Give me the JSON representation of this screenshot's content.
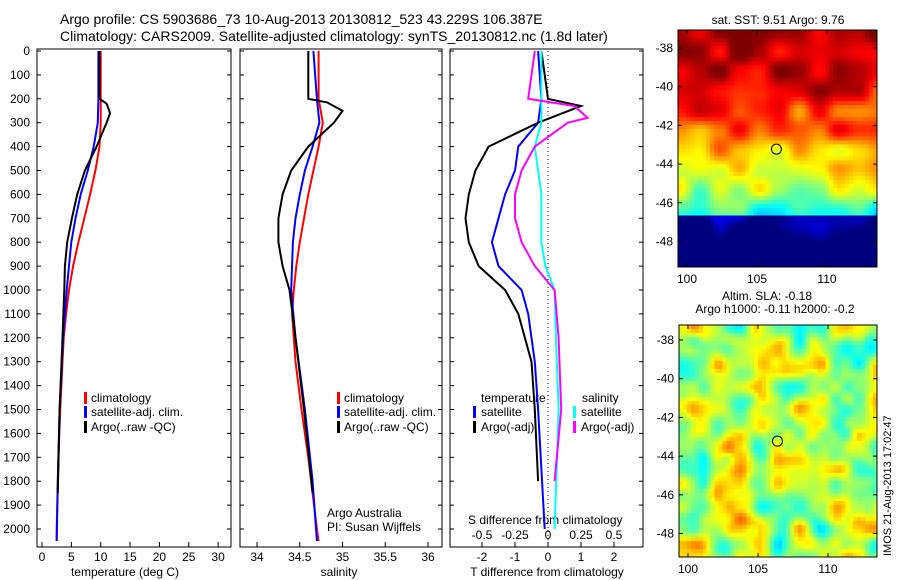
{
  "title": {
    "line1": "Argo profile: CS 5903686_73 10-Aug-2013 20130812_523 43.229S 106.387E",
    "line2": "Climatology: CARS2009. Satellite-adjusted climatology: synTS_20130812.nc (1.8d later)"
  },
  "colors": {
    "clim": "#ff0000",
    "sat": "#0000ff",
    "argo": "#000000",
    "sal_sat": "#00ffff",
    "sal_argo": "#ff00ff"
  },
  "chart_data": [
    {
      "type": "line",
      "xlabel": "temperature (deg C)",
      "xlim": [
        -1,
        31
      ],
      "ylim": [
        0,
        2050
      ],
      "xticks": [
        "0",
        "5",
        "10",
        "15",
        "20",
        "25",
        "30"
      ],
      "yticks": [
        "0",
        "100",
        "200",
        "300",
        "400",
        "500",
        "600",
        "700",
        "800",
        "900",
        "1000",
        "1100",
        "1200",
        "1300",
        "1400",
        "1500",
        "1600",
        "1700",
        "1800",
        "1900",
        "2000"
      ],
      "legend": [
        "climatology",
        "satellite-adj. clim.",
        "Argo(..raw -QC)"
      ],
      "series": [
        {
          "name": "climatology",
          "color": "#ff0000",
          "depth": [
            0,
            100,
            200,
            300,
            400,
            500,
            600,
            700,
            800,
            900,
            1000,
            1100,
            1200,
            1300,
            1500,
            1700,
            2000,
            2050
          ],
          "values": [
            10,
            10,
            10,
            10,
            9.8,
            9.1,
            8.2,
            7.2,
            6.2,
            5.3,
            4.6,
            4.1,
            3.7,
            3.5,
            3.1,
            2.8,
            2.5,
            2.5
          ]
        },
        {
          "name": "satellite-adj. clim.",
          "color": "#0000ff",
          "depth": [
            0,
            200,
            300,
            400,
            500,
            600,
            700,
            800,
            900,
            1000,
            1200,
            1500,
            1800,
            2050
          ],
          "values": [
            9.6,
            9.6,
            9.5,
            8.8,
            7.8,
            6.6,
            5.7,
            5.0,
            4.6,
            4.2,
            3.6,
            3.0,
            2.7,
            2.5
          ]
        },
        {
          "name": "Argo(..raw -QC)",
          "color": "#000000",
          "depth": [
            0,
            200,
            220,
            260,
            300,
            400,
            500,
            600,
            700,
            800,
            900,
            1000,
            1200,
            1500,
            1850
          ],
          "values": [
            9.8,
            9.8,
            11,
            11.6,
            11,
            9.3,
            7.3,
            6.0,
            5.1,
            4.3,
            3.9,
            3.8,
            3.5,
            3.0,
            2.7
          ]
        }
      ]
    },
    {
      "type": "line",
      "xlabel": "salinity",
      "xlim": [
        33.8,
        36.2
      ],
      "ylim": [
        0,
        2050
      ],
      "xticks": [
        "34",
        "34.5",
        "35",
        "35.5",
        "36"
      ],
      "legend": [
        "climatology",
        "satellite-adj. clim.",
        "Argo(..raw -QC)"
      ],
      "annotation": [
        "Argo Australia",
        "PI: Susan Wijffels"
      ],
      "series": [
        {
          "name": "climatology",
          "color": "#ff0000",
          "depth": [
            0,
            200,
            300,
            400,
            500,
            600,
            700,
            800,
            900,
            1000,
            1100,
            1300,
            1500,
            1700,
            2000,
            2050
          ],
          "values": [
            34.72,
            34.72,
            34.77,
            34.72,
            34.66,
            34.6,
            34.55,
            34.5,
            34.46,
            34.43,
            34.41,
            34.45,
            34.52,
            34.6,
            34.7,
            34.72
          ]
        },
        {
          "name": "satellite-adj. clim.",
          "color": "#0000ff",
          "depth": [
            0,
            200,
            300,
            400,
            500,
            600,
            700,
            800,
            1000,
            1200,
            1500,
            1800,
            2050
          ],
          "values": [
            34.66,
            34.7,
            34.73,
            34.65,
            34.56,
            34.5,
            34.45,
            34.42,
            34.4,
            34.45,
            34.56,
            34.65,
            34.7
          ]
        },
        {
          "name": "Argo(..raw -QC)",
          "color": "#000000",
          "depth": [
            0,
            200,
            215,
            250,
            300,
            400,
            500,
            600,
            700,
            800,
            900,
            1000,
            1200,
            1500,
            1850
          ],
          "values": [
            34.6,
            34.6,
            34.82,
            35.0,
            34.9,
            34.6,
            34.4,
            34.3,
            34.25,
            34.25,
            34.3,
            34.38,
            34.45,
            34.55,
            34.65
          ]
        }
      ]
    },
    {
      "type": "line",
      "xlabel": "T difference from climatology",
      "xlabel2": "S difference from climatology",
      "xlim": [
        -3,
        2.9
      ],
      "ylim": [
        0,
        2050
      ],
      "xticks": [
        "-2",
        "-1",
        "0",
        "1",
        "2"
      ],
      "xticks2": [
        "-0.5",
        "-0.25",
        "0",
        "0.25",
        "0.5"
      ],
      "legend_t": {
        "title": "temperature",
        "items": [
          "satellite",
          "Argo(-adj)"
        ]
      },
      "legend_s": {
        "title": "salinity",
        "items": [
          "satellite",
          "Argo(-adj)"
        ]
      },
      "series": [
        {
          "name": "T satellite",
          "color": "#0000ff",
          "units": "T",
          "depth": [
            0,
            200,
            300,
            400,
            500,
            600,
            700,
            800,
            900,
            1000,
            1100,
            1300,
            1500,
            2000
          ],
          "values": [
            -0.3,
            -0.2,
            -0.3,
            -0.9,
            -1.0,
            -1.3,
            -1.5,
            -1.7,
            -1.5,
            -0.8,
            -0.6,
            -0.4,
            -0.3,
            -0.1
          ]
        },
        {
          "name": "T Argo(-adj)",
          "color": "#000000",
          "units": "T",
          "depth": [
            0,
            200,
            230,
            300,
            400,
            500,
            600,
            700,
            800,
            900,
            1000,
            1100,
            1300,
            1500,
            1800
          ],
          "values": [
            -0.2,
            0,
            1.0,
            -0.3,
            -1.8,
            -2.2,
            -2.4,
            -2.5,
            -2.4,
            -2.1,
            -1.3,
            -0.9,
            -0.5,
            -0.4,
            -0.3
          ]
        },
        {
          "name": "S satellite",
          "color": "#00ffff",
          "units": "S",
          "depth": [
            0,
            200,
            300,
            400,
            600,
            800,
            900,
            1000,
            1200,
            1500,
            2000
          ],
          "values": [
            -0.05,
            -0.05,
            -0.05,
            -0.1,
            -0.05,
            -0.05,
            -0.02,
            0.05,
            0.06,
            0.08,
            0.05
          ]
        },
        {
          "name": "S Argo(-adj)",
          "color": "#ff00ff",
          "units": "S",
          "depth": [
            0,
            200,
            230,
            280,
            300,
            400,
            500,
            600,
            700,
            800,
            900,
            1000,
            1200,
            1500,
            1800
          ],
          "values": [
            -0.1,
            -0.15,
            0.2,
            0.3,
            0.15,
            -0.1,
            -0.2,
            -0.25,
            -0.25,
            -0.2,
            -0.1,
            0.05,
            0.08,
            0.1,
            0.05
          ]
        }
      ]
    }
  ],
  "maps": {
    "sst": {
      "title": "sat. SST: 9.51  Argo: 9.76",
      "xticks": [
        "100",
        "105",
        "110"
      ],
      "yticks": [
        "-38",
        "-40",
        "-42",
        "-44",
        "-46",
        "-48"
      ],
      "marker": {
        "lon": 106.387,
        "lat": -43.229
      }
    },
    "sla": {
      "title1": "Altim. SLA: -0.18",
      "title2": "Argo h1000: -0.11 h2000: -0.2",
      "xticks": [
        "100",
        "105",
        "110"
      ],
      "yticks": [
        "-38",
        "-40",
        "-42",
        "-44",
        "-46",
        "-48"
      ],
      "marker": {
        "lon": 106.387,
        "lat": -43.229
      }
    }
  },
  "stamp": "IMOS 21-Aug-2013 17:02:47"
}
